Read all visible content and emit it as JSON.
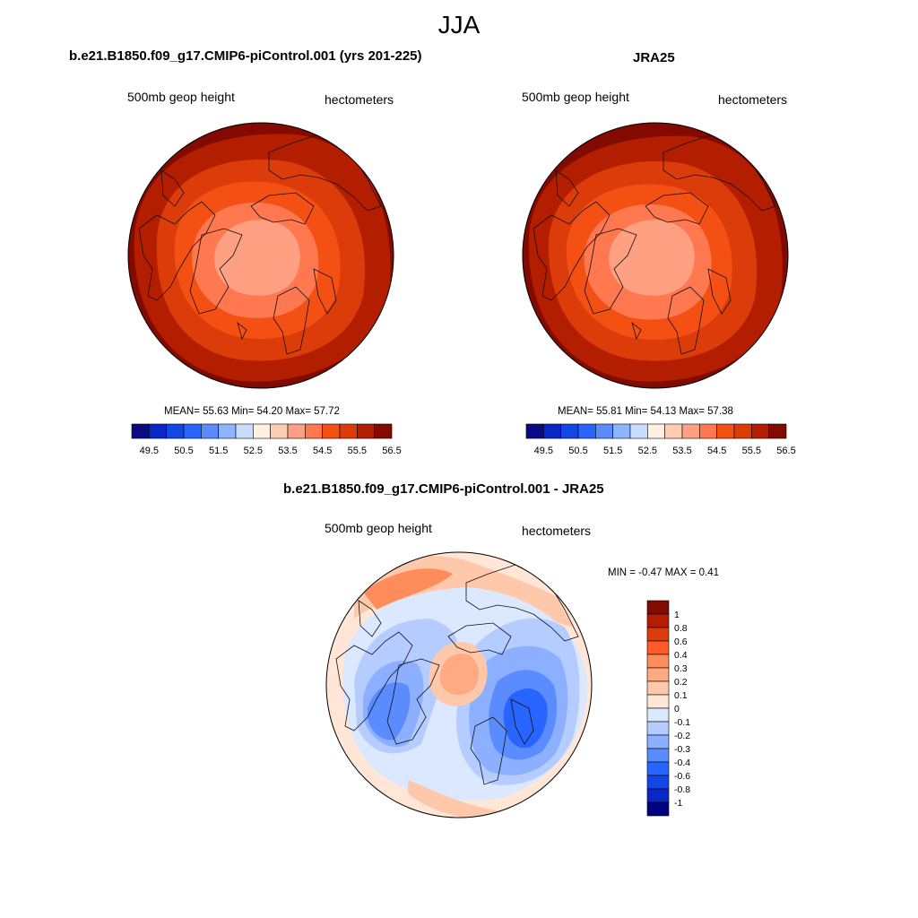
{
  "main_title": "JJA",
  "panels": [
    {
      "title": "b.e21.B1850.f09_g17.CMIP6-piControl.001 (yrs 201-225)",
      "left_label": "500mb geop height",
      "right_label": "hectometers",
      "stats": "MEAN=  55.63  Min=  54.20  Max=  57.72"
    },
    {
      "title": "JRA25",
      "left_label": "500mb geop height",
      "right_label": "hectometers",
      "stats": "MEAN=  55.81  Min=  54.13  Max=  57.38"
    },
    {
      "title": "b.e21.B1850.f09_g17.CMIP6-piControl.001 - JRA25",
      "left_label": "500mb geop height",
      "right_label": "hectometers",
      "stats": "MIN =  -0.47 MAX =   0.41"
    }
  ],
  "abs_colorbar": {
    "colors": [
      "#0a0a82",
      "#0a28c8",
      "#1446e6",
      "#2864ff",
      "#5a8cff",
      "#8cb4ff",
      "#c8dcff",
      "#fff0e6",
      "#ffcdb4",
      "#ffa082",
      "#ff7850",
      "#f55014",
      "#dc3c0a",
      "#b41e00",
      "#820a00"
    ],
    "ticks": [
      "49.5",
      "50.5",
      "51.5",
      "52.5",
      "53.5",
      "54.5",
      "55.5",
      "56.5"
    ]
  },
  "diff_colorbar": {
    "colors": [
      "#820a00",
      "#b41e00",
      "#dc3c0a",
      "#ff5a28",
      "#ff8c5a",
      "#ffaa82",
      "#ffc8aa",
      "#ffe6d7",
      "#dce8ff",
      "#b4ccff",
      "#8cb0ff",
      "#5a8cff",
      "#2864ff",
      "#1446e6",
      "#0a28c8",
      "#000082"
    ],
    "ticks": [
      "1",
      "0.8",
      "0.6",
      "0.4",
      "0.3",
      "0.2",
      "0.1",
      "0",
      "-0.1",
      "-0.2",
      "-0.3",
      "-0.4",
      "-0.6",
      "-0.8",
      "-1"
    ]
  }
}
